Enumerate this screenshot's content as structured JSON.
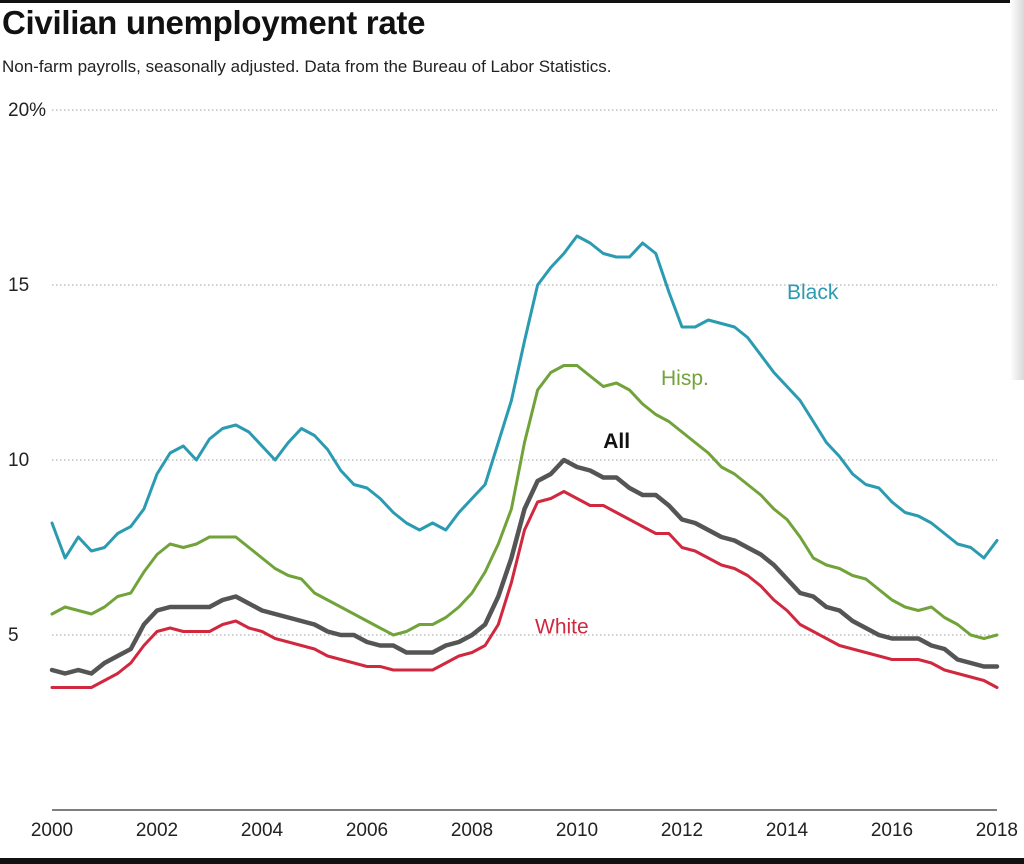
{
  "header": {
    "title": "Civilian unemployment rate",
    "subtitle": "Non-farm payrolls, seasonally adjusted. Data from the Bureau of Labor Statistics."
  },
  "chart_data": {
    "type": "line",
    "title": "Civilian unemployment rate",
    "subtitle": "Non-farm payrolls, seasonally adjusted. Data from the Bureau of Labor Statistics.",
    "xlabel": "",
    "ylabel": "",
    "xlim": [
      2000,
      2018
    ],
    "ylim": [
      0,
      20
    ],
    "grid": true,
    "x_ticks": [
      {
        "value": 2000,
        "label": "2000"
      },
      {
        "value": 2002,
        "label": "2002"
      },
      {
        "value": 2004,
        "label": "2004"
      },
      {
        "value": 2006,
        "label": "2006"
      },
      {
        "value": 2008,
        "label": "2008"
      },
      {
        "value": 2010,
        "label": "2010"
      },
      {
        "value": 2012,
        "label": "2012"
      },
      {
        "value": 2014,
        "label": "2014"
      },
      {
        "value": 2016,
        "label": "2016"
      },
      {
        "value": 2018,
        "label": "2018"
      }
    ],
    "y_ticks": [
      {
        "value": 5,
        "label": "5"
      },
      {
        "value": 10,
        "label": "10"
      },
      {
        "value": 15,
        "label": "15"
      },
      {
        "value": 20,
        "label": "20%"
      }
    ],
    "series": [
      {
        "name": "Black",
        "color": "#2a9bb0",
        "label_x": 2014.0,
        "label_y": 14.6,
        "x": [
          2000,
          2000.25,
          2000.5,
          2000.75,
          2001,
          2001.25,
          2001.5,
          2001.75,
          2002,
          2002.25,
          2002.5,
          2002.75,
          2003,
          2003.25,
          2003.5,
          2003.75,
          2004,
          2004.25,
          2004.5,
          2004.75,
          2005,
          2005.25,
          2005.5,
          2005.75,
          2006,
          2006.25,
          2006.5,
          2006.75,
          2007,
          2007.25,
          2007.5,
          2007.75,
          2008,
          2008.25,
          2008.5,
          2008.75,
          2009,
          2009.25,
          2009.5,
          2009.75,
          2010,
          2010.25,
          2010.5,
          2010.75,
          2011,
          2011.25,
          2011.5,
          2011.75,
          2012,
          2012.25,
          2012.5,
          2012.75,
          2013,
          2013.25,
          2013.5,
          2013.75,
          2014,
          2014.25,
          2014.5,
          2014.75,
          2015,
          2015.25,
          2015.5,
          2015.75,
          2016,
          2016.25,
          2016.5,
          2016.75,
          2017,
          2017.25,
          2017.5,
          2017.75,
          2018
        ],
        "values": [
          8.2,
          7.2,
          7.8,
          7.4,
          7.5,
          7.9,
          8.1,
          8.6,
          9.6,
          10.2,
          10.4,
          10.0,
          10.6,
          10.9,
          11.0,
          10.8,
          10.4,
          10.0,
          10.5,
          10.9,
          10.7,
          10.3,
          9.7,
          9.3,
          9.2,
          8.9,
          8.5,
          8.2,
          8.0,
          8.2,
          8.0,
          8.5,
          8.9,
          9.3,
          10.5,
          11.7,
          13.4,
          15.0,
          15.5,
          15.9,
          16.4,
          16.2,
          15.9,
          15.8,
          15.8,
          16.2,
          15.9,
          14.8,
          13.8,
          13.8,
          14.0,
          13.9,
          13.8,
          13.5,
          13.0,
          12.5,
          12.1,
          11.7,
          11.1,
          10.5,
          10.1,
          9.6,
          9.3,
          9.2,
          8.8,
          8.5,
          8.4,
          8.2,
          7.9,
          7.6,
          7.5,
          7.2,
          7.7
        ]
      },
      {
        "name": "Hisp.",
        "color": "#71a33a",
        "label_x": 2011.6,
        "label_y": 12.15,
        "x": [
          2000,
          2000.25,
          2000.5,
          2000.75,
          2001,
          2001.25,
          2001.5,
          2001.75,
          2002,
          2002.25,
          2002.5,
          2002.75,
          2003,
          2003.25,
          2003.5,
          2003.75,
          2004,
          2004.25,
          2004.5,
          2004.75,
          2005,
          2005.25,
          2005.5,
          2005.75,
          2006,
          2006.25,
          2006.5,
          2006.75,
          2007,
          2007.25,
          2007.5,
          2007.75,
          2008,
          2008.25,
          2008.5,
          2008.75,
          2009,
          2009.25,
          2009.5,
          2009.75,
          2010,
          2010.25,
          2010.5,
          2010.75,
          2011,
          2011.25,
          2011.5,
          2011.75,
          2012,
          2012.25,
          2012.5,
          2012.75,
          2013,
          2013.25,
          2013.5,
          2013.75,
          2014,
          2014.25,
          2014.5,
          2014.75,
          2015,
          2015.25,
          2015.5,
          2015.75,
          2016,
          2016.25,
          2016.5,
          2016.75,
          2017,
          2017.25,
          2017.5,
          2017.75,
          2018
        ],
        "values": [
          5.6,
          5.8,
          5.7,
          5.6,
          5.8,
          6.1,
          6.2,
          6.8,
          7.3,
          7.6,
          7.5,
          7.6,
          7.8,
          7.8,
          7.8,
          7.5,
          7.2,
          6.9,
          6.7,
          6.6,
          6.2,
          6.0,
          5.8,
          5.6,
          5.4,
          5.2,
          5.0,
          5.1,
          5.3,
          5.3,
          5.5,
          5.8,
          6.2,
          6.8,
          7.6,
          8.6,
          10.5,
          12.0,
          12.5,
          12.7,
          12.7,
          12.4,
          12.1,
          12.2,
          12.0,
          11.6,
          11.3,
          11.1,
          10.8,
          10.5,
          10.2,
          9.8,
          9.6,
          9.3,
          9.0,
          8.6,
          8.3,
          7.8,
          7.2,
          7.0,
          6.9,
          6.7,
          6.6,
          6.3,
          6.0,
          5.8,
          5.7,
          5.8,
          5.5,
          5.3,
          5.0,
          4.9,
          5.0
        ]
      },
      {
        "name": "All",
        "color": "#555555",
        "label_x": 2010.5,
        "label_y": 10.35,
        "x": [
          2000,
          2000.25,
          2000.5,
          2000.75,
          2001,
          2001.25,
          2001.5,
          2001.75,
          2002,
          2002.25,
          2002.5,
          2002.75,
          2003,
          2003.25,
          2003.5,
          2003.75,
          2004,
          2004.25,
          2004.5,
          2004.75,
          2005,
          2005.25,
          2005.5,
          2005.75,
          2006,
          2006.25,
          2006.5,
          2006.75,
          2007,
          2007.25,
          2007.5,
          2007.75,
          2008,
          2008.25,
          2008.5,
          2008.75,
          2009,
          2009.25,
          2009.5,
          2009.75,
          2010,
          2010.25,
          2010.5,
          2010.75,
          2011,
          2011.25,
          2011.5,
          2011.75,
          2012,
          2012.25,
          2012.5,
          2012.75,
          2013,
          2013.25,
          2013.5,
          2013.75,
          2014,
          2014.25,
          2014.5,
          2014.75,
          2015,
          2015.25,
          2015.5,
          2015.75,
          2016,
          2016.25,
          2016.5,
          2016.75,
          2017,
          2017.25,
          2017.5,
          2017.75,
          2018
        ],
        "values": [
          4.0,
          3.9,
          4.0,
          3.9,
          4.2,
          4.4,
          4.6,
          5.3,
          5.7,
          5.8,
          5.8,
          5.8,
          5.8,
          6.0,
          6.1,
          5.9,
          5.7,
          5.6,
          5.5,
          5.4,
          5.3,
          5.1,
          5.0,
          5.0,
          4.8,
          4.7,
          4.7,
          4.5,
          4.5,
          4.5,
          4.7,
          4.8,
          5.0,
          5.3,
          6.1,
          7.2,
          8.6,
          9.4,
          9.6,
          10.0,
          9.8,
          9.7,
          9.5,
          9.5,
          9.2,
          9.0,
          9.0,
          8.7,
          8.3,
          8.2,
          8.0,
          7.8,
          7.7,
          7.5,
          7.3,
          7.0,
          6.6,
          6.2,
          6.1,
          5.8,
          5.7,
          5.4,
          5.2,
          5.0,
          4.9,
          4.9,
          4.9,
          4.7,
          4.6,
          4.3,
          4.2,
          4.1,
          4.1
        ]
      },
      {
        "name": "White",
        "color": "#d0283e",
        "label_x": 2009.2,
        "label_y": 5.04,
        "x": [
          2000,
          2000.25,
          2000.5,
          2000.75,
          2001,
          2001.25,
          2001.5,
          2001.75,
          2002,
          2002.25,
          2002.5,
          2002.75,
          2003,
          2003.25,
          2003.5,
          2003.75,
          2004,
          2004.25,
          2004.5,
          2004.75,
          2005,
          2005.25,
          2005.5,
          2005.75,
          2006,
          2006.25,
          2006.5,
          2006.75,
          2007,
          2007.25,
          2007.5,
          2007.75,
          2008,
          2008.25,
          2008.5,
          2008.75,
          2009,
          2009.25,
          2009.5,
          2009.75,
          2010,
          2010.25,
          2010.5,
          2010.75,
          2011,
          2011.25,
          2011.5,
          2011.75,
          2012,
          2012.25,
          2012.5,
          2012.75,
          2013,
          2013.25,
          2013.5,
          2013.75,
          2014,
          2014.25,
          2014.5,
          2014.75,
          2015,
          2015.25,
          2015.5,
          2015.75,
          2016,
          2016.25,
          2016.5,
          2016.75,
          2017,
          2017.25,
          2017.5,
          2017.75,
          2018
        ],
        "values": [
          3.5,
          3.5,
          3.5,
          3.5,
          3.7,
          3.9,
          4.2,
          4.7,
          5.1,
          5.2,
          5.1,
          5.1,
          5.1,
          5.3,
          5.4,
          5.2,
          5.1,
          4.9,
          4.8,
          4.7,
          4.6,
          4.4,
          4.3,
          4.2,
          4.1,
          4.1,
          4.0,
          4.0,
          4.0,
          4.0,
          4.2,
          4.4,
          4.5,
          4.7,
          5.3,
          6.5,
          8.0,
          8.8,
          8.9,
          9.1,
          8.9,
          8.7,
          8.7,
          8.5,
          8.3,
          8.1,
          7.9,
          7.9,
          7.5,
          7.4,
          7.2,
          7.0,
          6.9,
          6.7,
          6.4,
          6.0,
          5.7,
          5.3,
          5.1,
          4.9,
          4.7,
          4.6,
          4.5,
          4.4,
          4.3,
          4.3,
          4.3,
          4.2,
          4.0,
          3.9,
          3.8,
          3.7,
          3.5
        ]
      }
    ]
  }
}
